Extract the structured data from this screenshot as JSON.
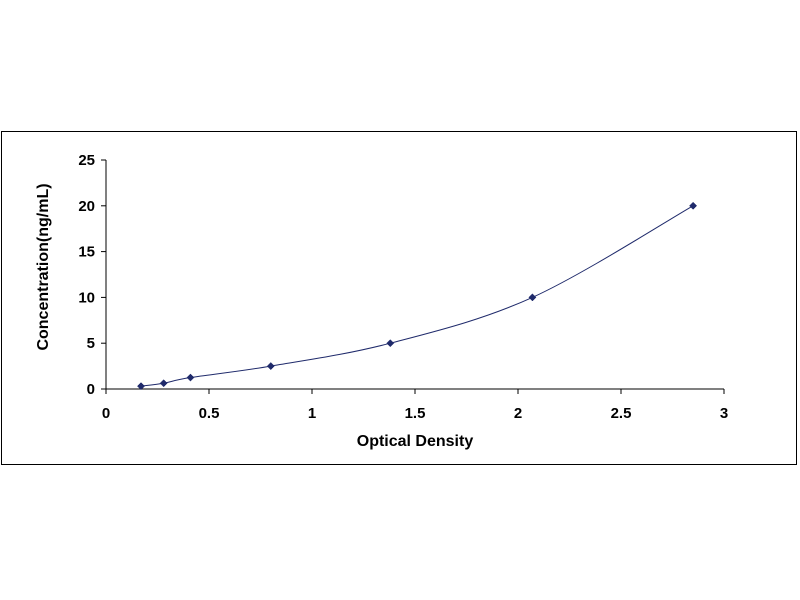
{
  "chart_data": {
    "type": "scatter",
    "title": "",
    "xlabel": "Optical Density",
    "ylabel": "Concentration(ng/mL)",
    "xlim": [
      0,
      3
    ],
    "ylim": [
      0,
      25
    ],
    "x_ticks": [
      "0",
      "0.5",
      "1",
      "1.5",
      "2",
      "2.5",
      "3"
    ],
    "y_ticks": [
      "0",
      "5",
      "10",
      "15",
      "20",
      "25"
    ],
    "grid": false,
    "legend": "none",
    "trendline": "smooth",
    "colors": {
      "marker": "#1f2a6b",
      "line": "#1f2a6b",
      "axis": "#000000"
    },
    "series": [
      {
        "marker": "diamond",
        "x": [
          0.17,
          0.28,
          0.41,
          0.8,
          1.38,
          2.07,
          2.85
        ],
        "y": [
          0.31,
          0.63,
          1.25,
          2.5,
          5,
          10,
          20
        ]
      }
    ]
  }
}
